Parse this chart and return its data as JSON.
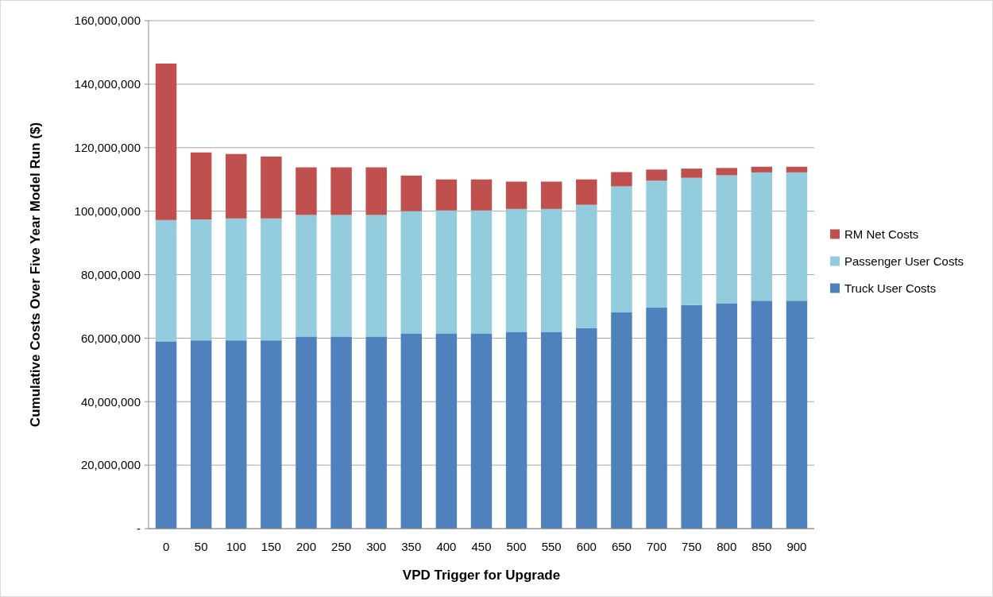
{
  "chart_data": {
    "type": "bar",
    "stacked": true,
    "xlabel": "VPD Trigger for Upgrade",
    "ylabel": "Cumulative Costs Over Five Year Model Run ($)",
    "categories": [
      "0",
      "50",
      "100",
      "150",
      "200",
      "250",
      "300",
      "350",
      "400",
      "450",
      "500",
      "550",
      "600",
      "650",
      "700",
      "750",
      "800",
      "850",
      "900"
    ],
    "series": [
      {
        "name": "Truck User Costs",
        "color": "#4f81bd",
        "values": [
          59000000,
          59300000,
          59300000,
          59300000,
          60500000,
          60500000,
          60500000,
          61500000,
          61500000,
          61500000,
          62000000,
          62000000,
          63100000,
          68100000,
          69600000,
          70400000,
          71000000,
          71800000,
          71800000
        ]
      },
      {
        "name": "Passenger User Costs",
        "color": "#93cddd",
        "values": [
          38200000,
          38100000,
          38400000,
          38400000,
          38300000,
          38300000,
          38300000,
          38500000,
          38700000,
          38700000,
          38700000,
          38700000,
          38900000,
          39700000,
          40000000,
          40100000,
          40300000,
          40400000,
          40400000
        ]
      },
      {
        "name": "RM Net Costs",
        "color": "#c0504d",
        "values": [
          49300000,
          21100000,
          20300000,
          19500000,
          15000000,
          15000000,
          15000000,
          11200000,
          9800000,
          9800000,
          8600000,
          8600000,
          8000000,
          4500000,
          3500000,
          2900000,
          2300000,
          1800000,
          1800000
        ]
      }
    ],
    "ylim": [
      0,
      160000000
    ],
    "yticks": [
      {
        "value": 0,
        "label": "-"
      },
      {
        "value": 20000000,
        "label": "20,000,000"
      },
      {
        "value": 40000000,
        "label": "40,000,000"
      },
      {
        "value": 60000000,
        "label": "60,000,000"
      },
      {
        "value": 80000000,
        "label": "80,000,000"
      },
      {
        "value": 100000000,
        "label": "100,000,000"
      },
      {
        "value": 120000000,
        "label": "120,000,000"
      },
      {
        "value": 140000000,
        "label": "140,000,000"
      },
      {
        "value": 160000000,
        "label": "160,000,000"
      }
    ],
    "grid": "y",
    "legend": "right"
  }
}
